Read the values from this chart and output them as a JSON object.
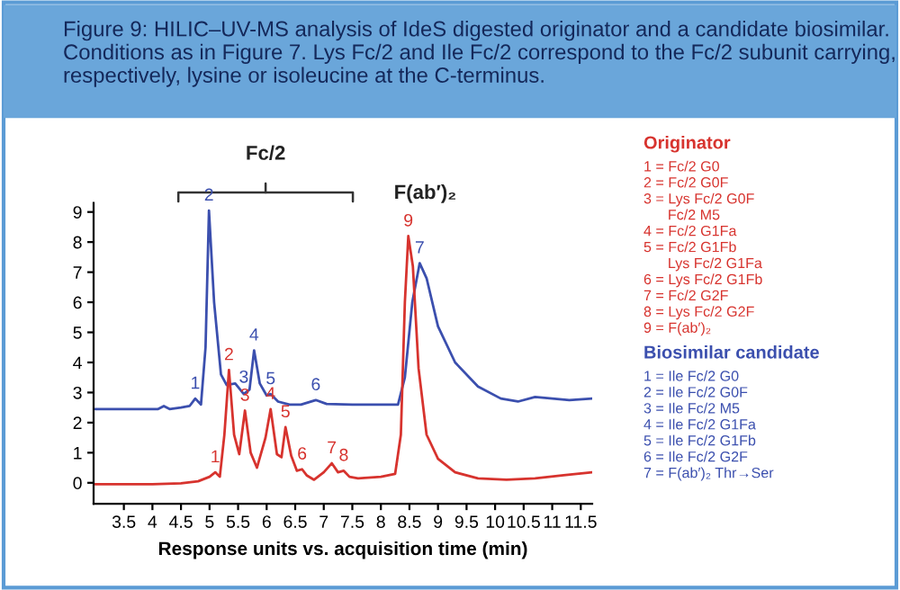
{
  "chart_data": {
    "type": "line",
    "title": "Figure 9: HILIC–UV-MS analysis of IdeS digested originator and a candidate biosimilar. Conditions as in Figure 7. Lys Fc/2 and Ile Fc/2 correspond to the Fc/2 subunit carrying, respectively, lysine or isoleucine at the C-terminus.",
    "xlabel": "Response units vs. acquisition time (min)",
    "xlim": [
      2.97,
      11.7
    ],
    "ylim": [
      -0.7,
      9.3
    ],
    "xticks": [
      3.5,
      4,
      4.5,
      5,
      5.5,
      6,
      6.5,
      7,
      7.5,
      8,
      8.5,
      9,
      9.5,
      10,
      10.5,
      11,
      11.5
    ],
    "yticks": [
      0,
      1,
      2,
      3,
      4,
      5,
      6,
      7,
      8,
      9
    ],
    "grid": false,
    "legend": false,
    "marker": "none",
    "line_style": "solid",
    "series": [
      {
        "name": "Biosimilar candidate",
        "color": "#3b4fae",
        "x": [
          3.0,
          4.1,
          4.2,
          4.3,
          4.5,
          4.65,
          4.75,
          4.85,
          4.93,
          4.99,
          5.08,
          5.2,
          5.3,
          5.45,
          5.6,
          5.7,
          5.78,
          5.88,
          6.0,
          6.07,
          6.2,
          6.4,
          6.6,
          6.86,
          7.05,
          7.5,
          8.0,
          8.3,
          8.42,
          8.55,
          8.68,
          8.8,
          9.0,
          9.3,
          9.7,
          10.1,
          10.4,
          10.7,
          11.0,
          11.3,
          11.7
        ],
        "values": [
          2.45,
          2.45,
          2.55,
          2.45,
          2.5,
          2.55,
          2.8,
          2.6,
          4.5,
          9.05,
          6.0,
          3.6,
          3.25,
          3.3,
          2.95,
          3.1,
          4.4,
          3.3,
          2.9,
          2.95,
          2.7,
          2.6,
          2.6,
          2.75,
          2.62,
          2.6,
          2.6,
          2.6,
          3.5,
          6.0,
          7.3,
          6.8,
          5.2,
          4.0,
          3.2,
          2.8,
          2.7,
          2.85,
          2.8,
          2.75,
          2.8
        ]
      },
      {
        "name": "Originator",
        "color": "#d7332e",
        "x": [
          3.0,
          4.0,
          4.5,
          4.8,
          5.0,
          5.1,
          5.18,
          5.26,
          5.34,
          5.43,
          5.52,
          5.62,
          5.72,
          5.83,
          5.98,
          6.07,
          6.18,
          6.26,
          6.33,
          6.43,
          6.53,
          6.62,
          6.7,
          6.83,
          7.0,
          7.14,
          7.25,
          7.35,
          7.45,
          7.6,
          8.0,
          8.25,
          8.35,
          8.42,
          8.48,
          8.56,
          8.66,
          8.8,
          9.0,
          9.3,
          9.7,
          10.2,
          10.7,
          11.2,
          11.7
        ],
        "values": [
          -0.05,
          -0.05,
          -0.02,
          0.05,
          0.2,
          0.35,
          0.2,
          1.6,
          3.75,
          1.6,
          0.95,
          2.4,
          1.0,
          0.5,
          1.5,
          2.45,
          0.95,
          0.85,
          1.85,
          0.9,
          0.4,
          0.45,
          0.25,
          0.1,
          0.35,
          0.65,
          0.35,
          0.4,
          0.2,
          0.15,
          0.2,
          0.3,
          1.6,
          6.0,
          8.2,
          7.2,
          3.8,
          1.6,
          0.8,
          0.35,
          0.15,
          0.1,
          0.15,
          0.25,
          0.35
        ]
      }
    ],
    "annotations": [
      {
        "text": "1",
        "x": 4.75,
        "y": 2.8
      },
      {
        "text": "2",
        "x": 4.99,
        "y": 9.05
      },
      {
        "text": "3",
        "x": 5.6,
        "y": 3.0
      },
      {
        "text": "4",
        "x": 5.78,
        "y": 4.4
      },
      {
        "text": "5",
        "x": 6.07,
        "y": 2.95
      },
      {
        "text": "6",
        "x": 6.86,
        "y": 2.75
      },
      {
        "text": "7",
        "x": 8.68,
        "y": 7.3
      },
      {
        "text": "1",
        "x": 5.1,
        "y": 0.35
      },
      {
        "text": "2",
        "x": 5.34,
        "y": 3.75
      },
      {
        "text": "3",
        "x": 5.62,
        "y": 2.4
      },
      {
        "text": "4",
        "x": 6.07,
        "y": 2.45
      },
      {
        "text": "5",
        "x": 6.33,
        "y": 1.85
      },
      {
        "text": "6",
        "x": 6.62,
        "y": 0.45
      },
      {
        "text": "7",
        "x": 7.14,
        "y": 0.65
      },
      {
        "text": "8",
        "x": 7.35,
        "y": 0.4
      },
      {
        "text": "9",
        "x": 8.48,
        "y": 8.2
      },
      "Fc/2",
      "F(ab′)₂",
      "1 = Ile Fc/2 G0\n2 = Ile Fc/2 G0F\n3 = Ile Fc/2 M5\n4 = Ile Fc/2 G1Fa\n5 = Ile Fc/2 G1Fb\n6 = Ile Fc/2 G2F\n7 = F(ab′)₂ Thr→Ser",
      "1 = Fc/2 G0\n2 = Fc/2 G0F\n3 = Lys Fc/2 G0F\n      Fc/2 M5\n4 = Fc/2 G1Fa\n5 = Fc/2 G1Fb\n      Lys Fc/2 G1Fa\n6 = Lys Fc/2 G1Fb\n7 = Fc/2 G2F\n8 = Lys Fc/2 G2F\n9 = F(ab′)₂"
    ]
  }
}
